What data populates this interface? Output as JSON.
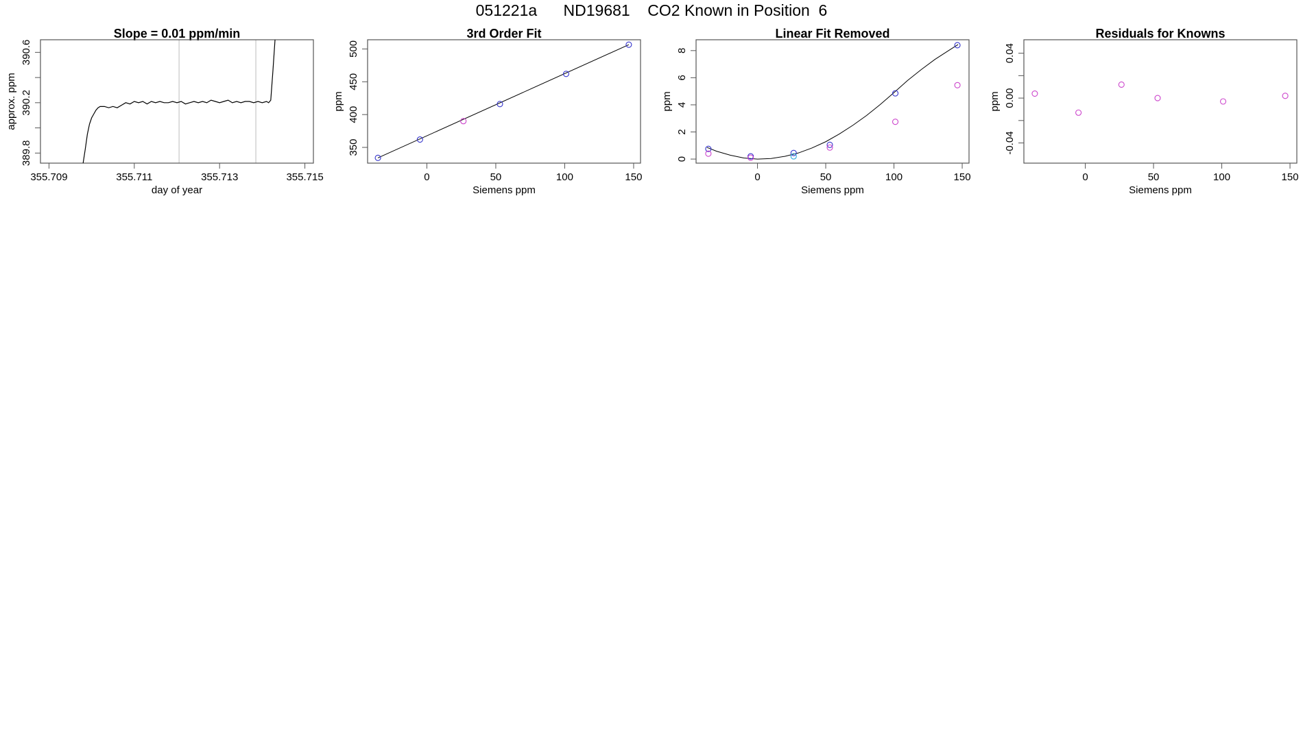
{
  "suptitle": "051221a      ND19681    CO2 Known in Position  6",
  "chart_data": [
    {
      "type": "line",
      "title": "Slope =  0.01  ppm/min",
      "xlabel": "day of year",
      "ylabel": "approx. ppm",
      "xlim": [
        355.7088,
        355.7152
      ],
      "ylim": [
        389.72,
        390.7
      ],
      "xticks": [
        355.709,
        355.711,
        355.713,
        355.715
      ],
      "xtick_labels": [
        "355.709",
        "355.711",
        "355.713",
        "355.715"
      ],
      "yticks": [
        389.8,
        390.0,
        390.2,
        390.4,
        390.6
      ],
      "ytick_labels": [
        "389.8",
        "",
        "390.2",
        "",
        "390.6"
      ],
      "vlines": [
        355.71205,
        355.71385
      ],
      "series": [
        {
          "color": "#000000",
          "x": [
            355.7098,
            355.70985,
            355.7099,
            355.70995,
            355.71,
            355.71005,
            355.7101,
            355.71015,
            355.7102,
            355.7103,
            355.7104,
            355.7105,
            355.7106,
            355.7107,
            355.7108,
            355.7109,
            355.711,
            355.7111,
            355.7112,
            355.7113,
            355.7114,
            355.7115,
            355.7116,
            355.7117,
            355.7118,
            355.7119,
            355.712,
            355.7121,
            355.7122,
            355.7123,
            355.7124,
            355.7125,
            355.7126,
            355.7127,
            355.7128,
            355.7129,
            355.713,
            355.7131,
            355.7132,
            355.7133,
            355.7134,
            355.7135,
            355.7136,
            355.7137,
            355.7138,
            355.7139,
            355.714,
            355.7141,
            355.71415,
            355.7142,
            355.71425,
            355.7143
          ],
          "y": [
            389.72,
            389.83,
            389.95,
            390.03,
            390.08,
            390.11,
            390.14,
            390.16,
            390.17,
            390.17,
            390.16,
            390.17,
            390.16,
            390.18,
            390.2,
            390.19,
            390.21,
            390.2,
            390.21,
            390.19,
            390.21,
            390.2,
            390.21,
            390.2,
            390.2,
            390.21,
            390.2,
            390.21,
            390.19,
            390.2,
            390.21,
            390.2,
            390.21,
            390.2,
            390.22,
            390.21,
            390.2,
            390.21,
            390.22,
            390.2,
            390.21,
            390.2,
            390.21,
            390.21,
            390.2,
            390.21,
            390.2,
            390.21,
            390.2,
            390.22,
            390.45,
            390.7
          ]
        }
      ]
    },
    {
      "type": "scatter",
      "title": "3rd Order Fit",
      "xlabel": "Siemens ppm",
      "ylabel": "ppm",
      "xlim": [
        -43,
        155
      ],
      "ylim": [
        326,
        514
      ],
      "xticks": [
        0,
        50,
        100,
        150
      ],
      "xtick_labels": [
        "0",
        "50",
        "100",
        "150"
      ],
      "yticks": [
        350,
        400,
        450,
        500
      ],
      "ytick_labels": [
        "350",
        "400",
        "450",
        "500"
      ],
      "fit_line": {
        "color": "#000000",
        "x": [
          -35.5,
          146.5
        ],
        "y": [
          334,
          506.5
        ]
      },
      "series": [
        {
          "color": "#3333cc",
          "x": [
            -35.5,
            -5,
            53,
            101,
            146.5
          ],
          "y": [
            334,
            362,
            416,
            462,
            506.5
          ]
        },
        {
          "color": "#cc44cc",
          "x": [
            26.5
          ],
          "y": [
            390
          ]
        }
      ]
    },
    {
      "type": "scatter",
      "title": "Linear Fit Removed",
      "xlabel": "Siemens ppm",
      "ylabel": "ppm",
      "xlim": [
        -45,
        155
      ],
      "ylim": [
        -0.3,
        8.8
      ],
      "xticks": [
        0,
        50,
        100,
        150
      ],
      "xtick_labels": [
        "0",
        "50",
        "100",
        "150"
      ],
      "yticks": [
        0,
        2,
        4,
        6,
        8
      ],
      "ytick_labels": [
        "0",
        "2",
        "4",
        "6",
        "8"
      ],
      "fit_line": {
        "color": "#000000",
        "x": [
          -37,
          -30,
          -20,
          -10,
          0,
          10,
          20,
          30,
          40,
          50,
          60,
          70,
          80,
          90,
          100,
          110,
          120,
          130,
          140,
          147
        ],
        "y": [
          0.86,
          0.58,
          0.29,
          0.08,
          0.0,
          0.04,
          0.2,
          0.45,
          0.82,
          1.28,
          1.85,
          2.5,
          3.22,
          4.03,
          4.9,
          5.8,
          6.6,
          7.35,
          8.0,
          8.45
        ]
      },
      "series": [
        {
          "color": "#3333cc",
          "x": [
            -36,
            -5,
            26.5,
            53,
            101,
            146.5
          ],
          "y": [
            0.75,
            0.2,
            0.45,
            1.05,
            4.85,
            8.4
          ]
        },
        {
          "color": "#cc44cc",
          "x": [
            -36,
            -5,
            53,
            101,
            146.5
          ],
          "y": [
            0.4,
            0.1,
            0.85,
            2.75,
            5.45
          ]
        },
        {
          "color": "#33aadd",
          "x": [
            26.5
          ],
          "y": [
            0.2
          ]
        }
      ]
    },
    {
      "type": "scatter",
      "title": "Residuals for Knowns",
      "xlabel": "Siemens ppm",
      "ylabel": "ppm",
      "xlim": [
        -45,
        155
      ],
      "ylim": [
        -0.058,
        0.052
      ],
      "xticks": [
        0,
        50,
        100,
        150
      ],
      "xtick_labels": [
        "0",
        "50",
        "100",
        "150"
      ],
      "yticks": [
        -0.04,
        -0.02,
        0.0,
        0.02,
        0.04
      ],
      "ytick_labels": [
        "-0.04",
        "",
        "0.00",
        "",
        "0.04"
      ],
      "series": [
        {
          "color": "#cc44cc",
          "x": [
            -37,
            -5,
            26.5,
            53,
            101,
            146.5
          ],
          "y": [
            0.004,
            -0.013,
            0.012,
            0.0,
            -0.003,
            0.002
          ]
        }
      ]
    }
  ]
}
